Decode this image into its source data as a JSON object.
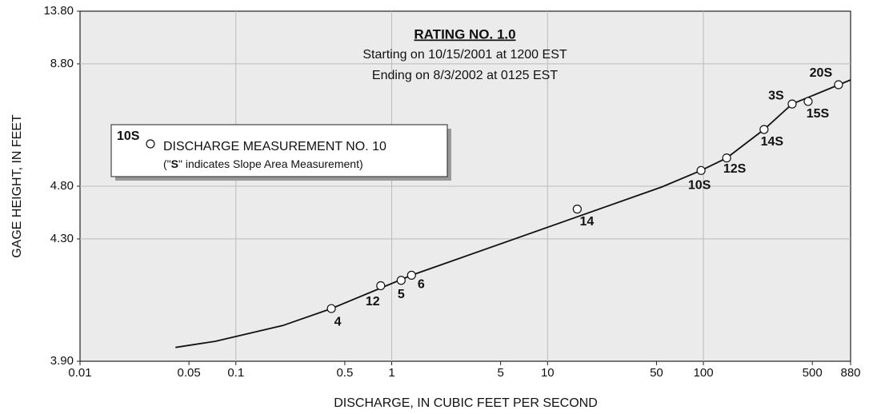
{
  "chart_data": {
    "type": "line",
    "title": "RATING NO. 1.0",
    "subtitle_lines": [
      "Starting on 10/15/2001 at 1200 EST",
      "Ending on 8/3/2002 at 0125 EST"
    ],
    "x_label": "DISCHARGE, IN CUBIC FEET PER SECOND",
    "y_label": "GAGE HEIGHT, IN FEET",
    "xscale": "log",
    "xlim": [
      0.01,
      880
    ],
    "xticks": [
      0.01,
      0.05,
      0.1,
      0.5,
      1,
      5,
      10,
      50,
      100,
      500,
      880
    ],
    "ylim": [
      3.9,
      13.8
    ],
    "yticks": [
      {
        "value": 3.9,
        "label": "3.90"
      },
      {
        "value": 4.3,
        "label": "4.30"
      },
      {
        "value": 4.8,
        "label": "4.80"
      },
      {
        "value": 8.8,
        "label": "8.80"
      },
      {
        "value": 13.8,
        "label": "13.80"
      }
    ],
    "grid": true,
    "color": "#111111",
    "curve": {
      "x": [
        0.041,
        0.074,
        0.2,
        0.41,
        1.34,
        54,
        96.6,
        141,
        245,
        371,
        880
      ],
      "y": [
        3.92,
        3.93,
        3.96,
        4.0,
        4.11,
        4.79,
        5.03,
        5.25,
        5.91,
        6.75,
        7.85
      ]
    },
    "measurements": {
      "labels": [
        "4",
        "12",
        "5",
        "6",
        "14",
        "10S",
        "12S",
        "14S",
        "3S",
        "15S",
        "20S"
      ],
      "x": [
        0.41,
        0.85,
        1.15,
        1.34,
        15.5,
        96.6,
        141,
        245,
        371,
        470,
        736
      ],
      "y": [
        4.0,
        4.07,
        4.09,
        4.11,
        4.54,
        5.03,
        5.25,
        5.91,
        6.75,
        6.85,
        7.6
      ]
    },
    "legend": {
      "marker_label": "10S",
      "text": "DISCHARGE MEASUREMENT NO. 10",
      "note_parts": [
        "(\"",
        "S",
        "\" indicates Slope Area Measurement)"
      ]
    }
  }
}
